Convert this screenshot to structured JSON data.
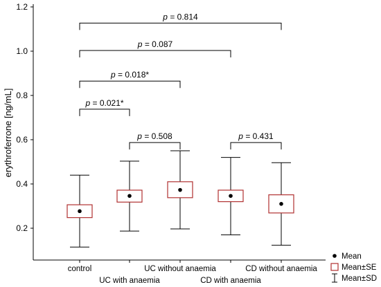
{
  "chart_data": {
    "type": "box",
    "ylabel": "erythroferrone [ng/mL]",
    "ylim": [
      0.0,
      1.2
    ],
    "y_ticks": [
      0.2,
      0.4,
      0.6,
      0.8,
      1.0,
      1.2
    ],
    "y_tick_labels": [
      "0.2",
      "0.4",
      "0.6",
      "0.8",
      "1.0",
      "1.2"
    ],
    "categories": [
      "control",
      "UC with anaemia",
      "UC without anaemia",
      "CD with anaemia",
      "CD without anaemia"
    ],
    "groups": [
      {
        "name": "control",
        "mean": 0.277,
        "se_low": 0.248,
        "se_high": 0.306,
        "sd_low": 0.115,
        "sd_high": 0.44
      },
      {
        "name": "UC with anaemia",
        "mean": 0.346,
        "se_low": 0.318,
        "se_high": 0.372,
        "sd_low": 0.187,
        "sd_high": 0.503
      },
      {
        "name": "UC without anaemia",
        "mean": 0.373,
        "se_low": 0.338,
        "se_high": 0.41,
        "sd_low": 0.197,
        "sd_high": 0.55
      },
      {
        "name": "CD with anaemia",
        "mean": 0.346,
        "se_low": 0.32,
        "se_high": 0.372,
        "sd_low": 0.17,
        "sd_high": 0.52
      },
      {
        "name": "CD without anaemia",
        "mean": 0.31,
        "se_low": 0.269,
        "se_high": 0.351,
        "sd_low": 0.123,
        "sd_high": 0.496
      }
    ],
    "comparisons": [
      {
        "from": 0,
        "to": 4,
        "y": 1.127,
        "label": "p = 0.814"
      },
      {
        "from": 0,
        "to": 3,
        "y": 1.003,
        "label": "p = 0.087"
      },
      {
        "from": 0,
        "to": 2,
        "y": 0.865,
        "label": "p = 0.018*"
      },
      {
        "from": 0,
        "to": 1,
        "y": 0.738,
        "label": "p = 0.021*"
      },
      {
        "from": 1,
        "to": 2,
        "y": 0.587,
        "label": "p = 0.508"
      },
      {
        "from": 3,
        "to": 4,
        "y": 0.587,
        "label": "p = 0.431"
      }
    ],
    "legend": {
      "position": "bottom-right",
      "entries": [
        {
          "symbol": "dot",
          "label": "Mean"
        },
        {
          "symbol": "box",
          "label": "Mean±SE"
        },
        {
          "symbol": "whisker",
          "label": "Mean±SD"
        }
      ]
    },
    "colors": {
      "box": "#b03030",
      "whisker": "#000000",
      "mean": "#000000",
      "axis": "#000000"
    }
  }
}
